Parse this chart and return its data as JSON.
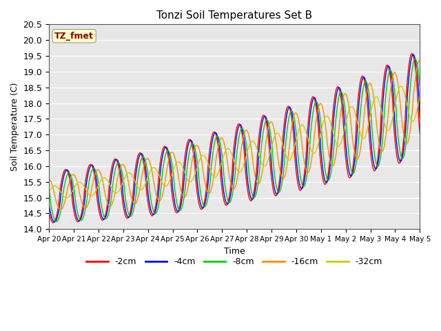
{
  "title": "Tonzi Soil Temperatures Set B",
  "xlabel": "Time",
  "ylabel": "Soil Temperature (C)",
  "ylim": [
    14.0,
    20.5
  ],
  "annotation_text": "TZ_fmet",
  "annotation_color": "#8B0000",
  "annotation_bg": "#FFFFCC",
  "line_colors": {
    "-2cm": "#FF0000",
    "-4cm": "#0000FF",
    "-8cm": "#00CC00",
    "-16cm": "#FF8C00",
    "-32cm": "#CCCC00"
  },
  "legend_labels": [
    "-2cm",
    "-4cm",
    "-8cm",
    "-16cm",
    "-32cm"
  ],
  "plot_bg": "#E8E8E8",
  "tick_labels": [
    "Apr 20",
    "Apr 21",
    "Apr 22",
    "Apr 23",
    "Apr 24",
    "Apr 25",
    "Apr 26",
    "Apr 27",
    "Apr 28",
    "Apr 29",
    "Apr 30",
    "May 1",
    "May 2",
    "May 3",
    "May 4",
    "May 5"
  ],
  "figsize": [
    6.4,
    4.8
  ],
  "dpi": 100
}
